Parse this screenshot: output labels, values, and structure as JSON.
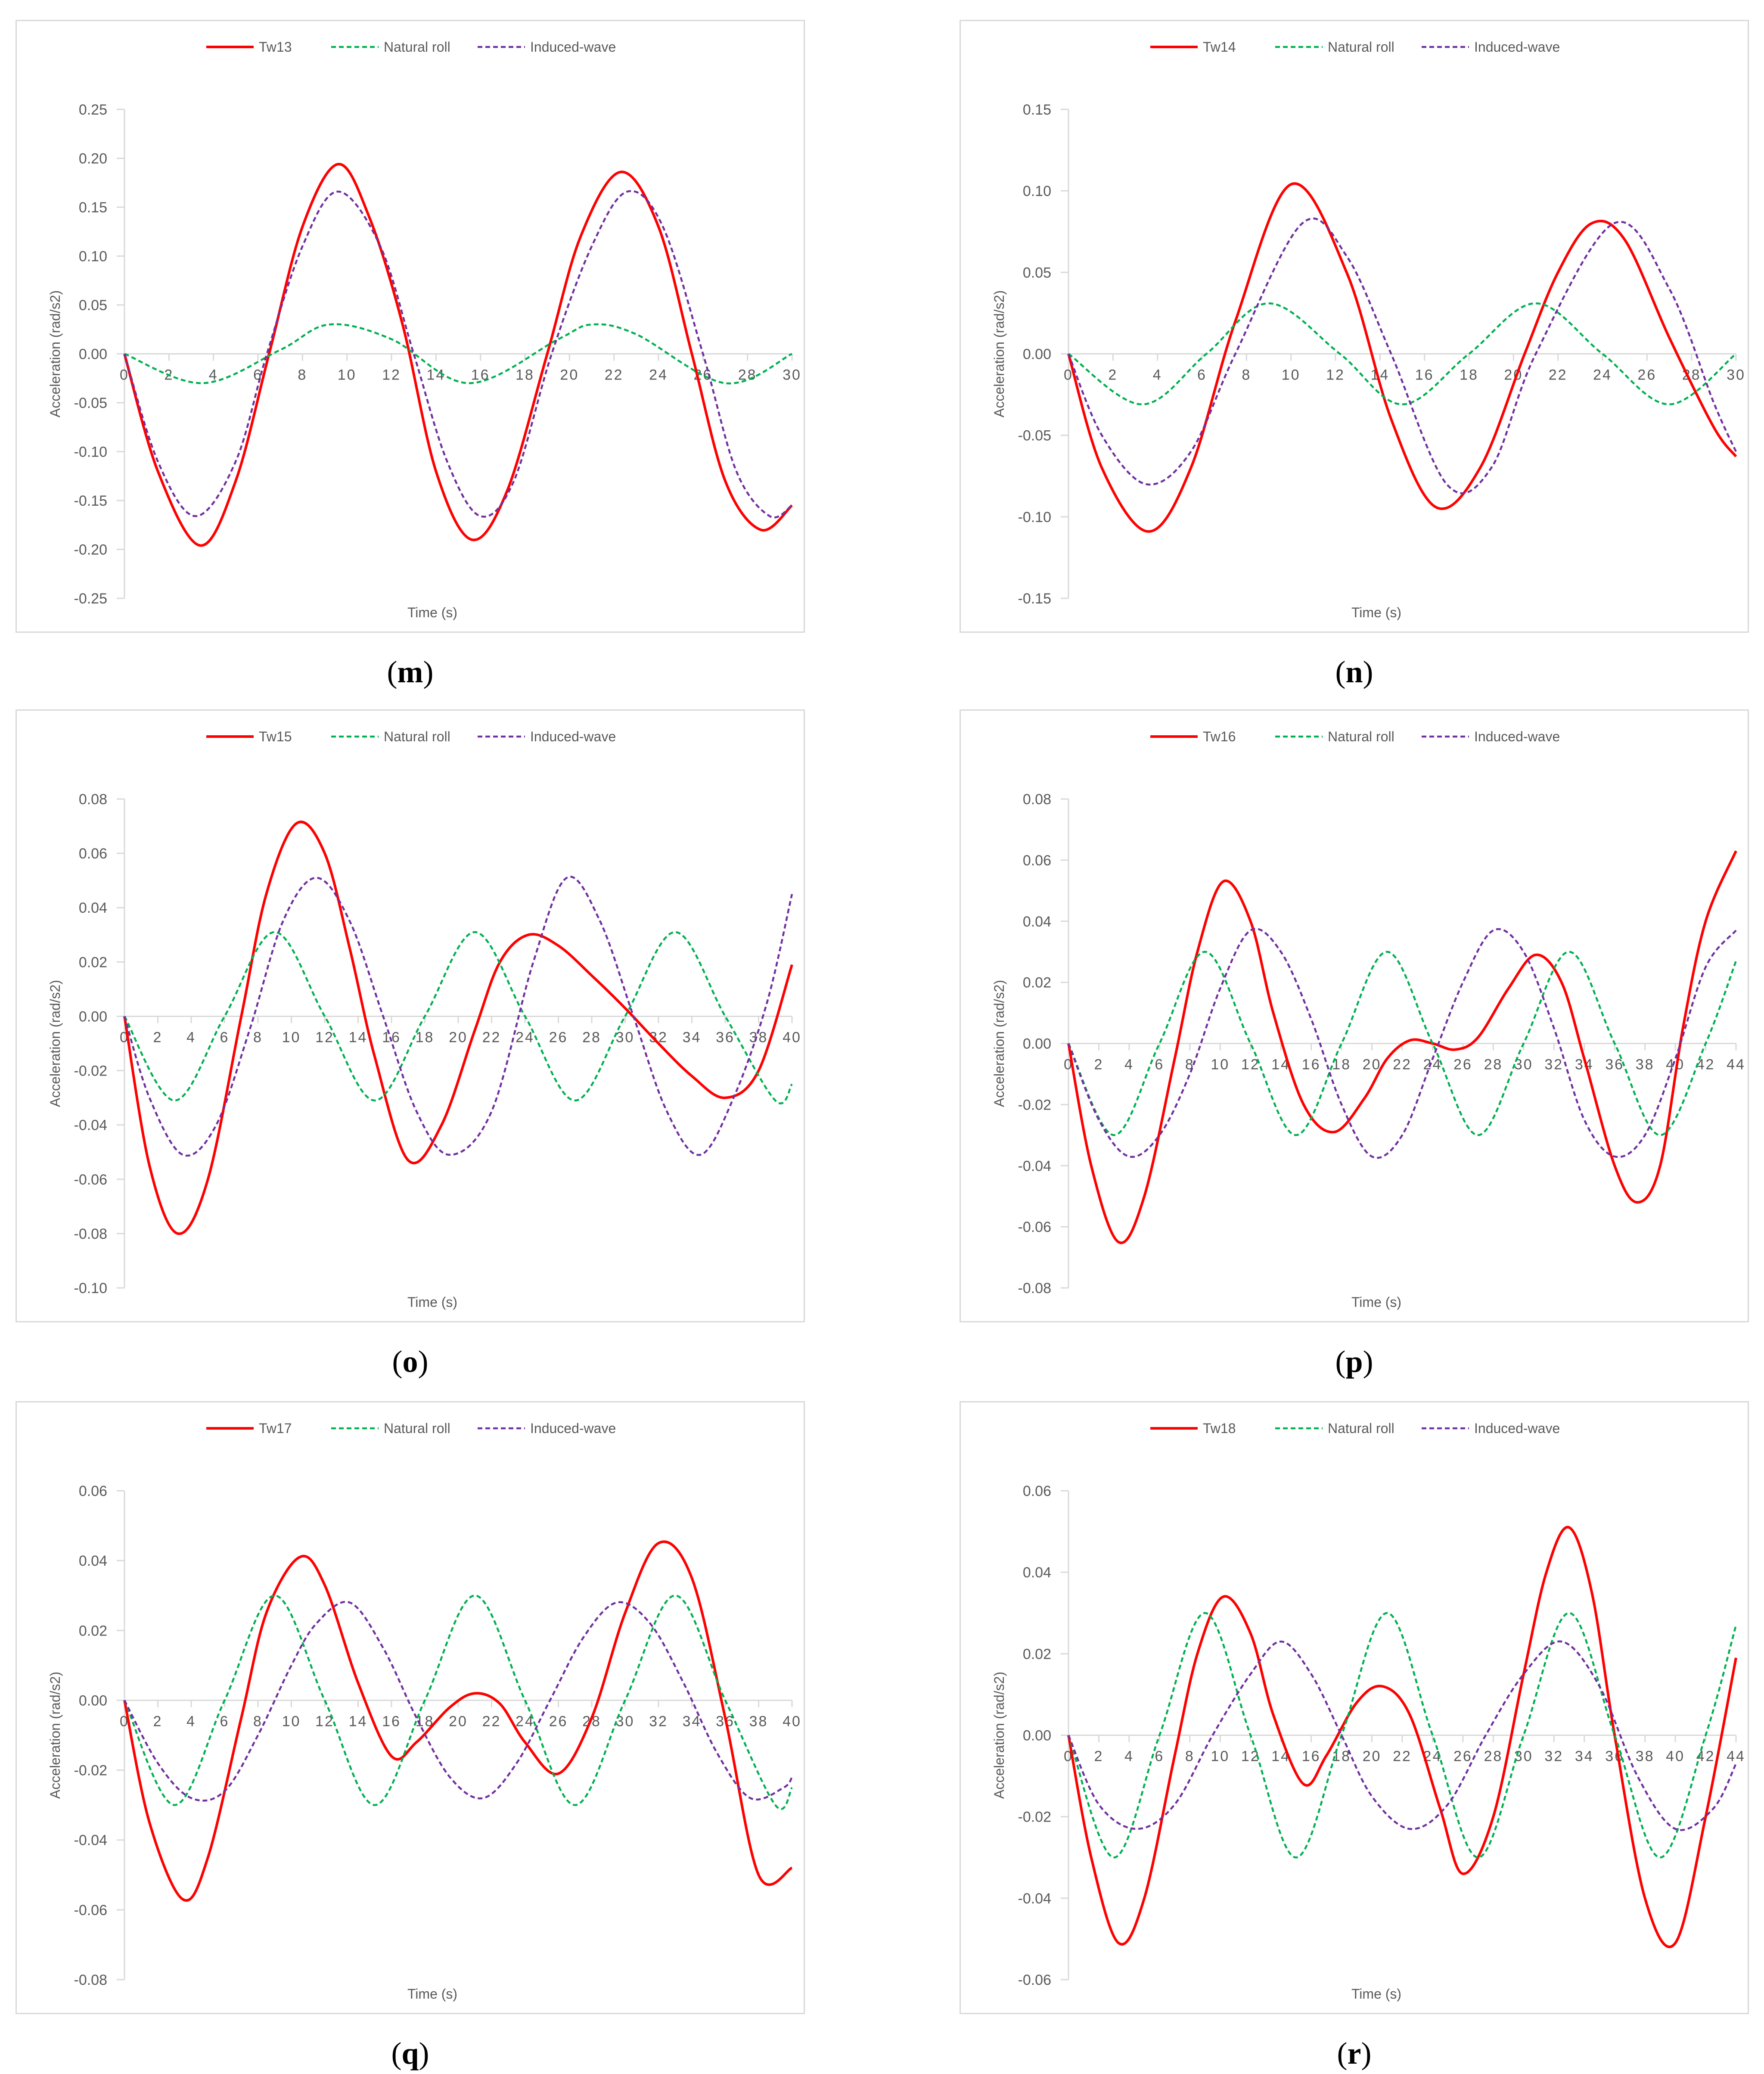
{
  "colors": {
    "tw": "#ff0000",
    "natural": "#00b050",
    "induced": "#7030a0",
    "axis": "#d9d9d9",
    "text": "#595959"
  },
  "legend_labels": {
    "natural": "Natural roll",
    "induced": "Induced-wave"
  },
  "chart_data": [
    {
      "caption": "m",
      "type": "line",
      "legend": "top",
      "ylabel": "Acceleration (rad/s2)",
      "xlabel": "Time (s)",
      "ylim": [
        -0.25,
        0.25
      ],
      "ystep": 0.05,
      "ydecimals": 2,
      "xticks": [
        0,
        2,
        4,
        6,
        8,
        10,
        12,
        14,
        16,
        18,
        20,
        22,
        24,
        26,
        28,
        30
      ],
      "series": [
        {
          "name": "Tw13",
          "key": "tw",
          "style": "solid",
          "x": [
            0,
            1.5,
            3.4,
            5,
            6.5,
            8,
            9.6,
            11,
            12.5,
            14,
            15.6,
            17.2,
            19,
            20.5,
            22.3,
            24,
            25.5,
            27,
            28.6,
            30
          ],
          "y": [
            0,
            -0.12,
            -0.196,
            -0.13,
            0,
            0.13,
            0.194,
            0.14,
            0.03,
            -0.12,
            -0.19,
            -0.14,
            0,
            0.12,
            0.186,
            0.13,
            0,
            -0.13,
            -0.18,
            -0.155
          ]
        },
        {
          "name": "Natural roll",
          "key": "natural",
          "style": "dashed",
          "x": [
            0,
            3.5,
            7,
            9.2,
            12,
            15.5,
            19.5,
            21,
            23,
            27,
            30
          ],
          "y": [
            0,
            -0.03,
            0.004,
            0.03,
            0.015,
            -0.03,
            0.015,
            0.03,
            0.02,
            -0.03,
            0
          ]
        },
        {
          "name": "Induced-wave",
          "key": "induced",
          "style": "dashed",
          "x": [
            0,
            1.5,
            3.2,
            5,
            6.4,
            8,
            9.6,
            11.5,
            13,
            14.5,
            16,
            17.5,
            19.2,
            21,
            22.6,
            24.2,
            26,
            27.5,
            29,
            30
          ],
          "y": [
            0,
            -0.11,
            -0.166,
            -0.11,
            0,
            0.11,
            0.166,
            0.11,
            0,
            -0.11,
            -0.166,
            -0.13,
            0,
            0.11,
            0.166,
            0.13,
            0,
            -0.12,
            -0.166,
            -0.155
          ]
        }
      ]
    },
    {
      "caption": "n",
      "type": "line",
      "legend": "top",
      "ylabel": "Acceleration (rad/s2)",
      "xlabel": "Time (s)",
      "ylim": [
        -0.15,
        0.15
      ],
      "ystep": 0.05,
      "ydecimals": 2,
      "xticks": [
        0,
        2,
        4,
        6,
        8,
        10,
        12,
        14,
        16,
        18,
        20,
        22,
        24,
        26,
        28,
        30
      ],
      "series": [
        {
          "name": "Tw14",
          "key": "tw",
          "style": "solid",
          "x": [
            0,
            1.5,
            3.6,
            5.5,
            7.5,
            10,
            12.5,
            14.5,
            16.5,
            18.5,
            20.5,
            22,
            23.5,
            25,
            27,
            29,
            30
          ],
          "y": [
            0,
            -0.07,
            -0.109,
            -0.07,
            0.02,
            0.104,
            0.05,
            -0.04,
            -0.094,
            -0.07,
            0,
            0.05,
            0.08,
            0.07,
            0.01,
            -0.045,
            -0.063
          ]
        },
        {
          "name": "Natural roll",
          "key": "natural",
          "style": "dashed",
          "x": [
            0,
            3.3,
            6.2,
            9,
            12.2,
            15,
            18,
            21,
            24,
            27,
            30
          ],
          "y": [
            0,
            -0.031,
            0,
            0.031,
            0,
            -0.031,
            0,
            0.031,
            0,
            -0.031,
            0
          ]
        },
        {
          "name": "Induced-wave",
          "key": "induced",
          "style": "dashed",
          "x": [
            0,
            1.5,
            3.5,
            5.5,
            7.5,
            10.5,
            12.5,
            14.5,
            17,
            19,
            21,
            24.5,
            27,
            29,
            30
          ],
          "y": [
            0,
            -0.05,
            -0.08,
            -0.06,
            0,
            0.08,
            0.06,
            0,
            -0.08,
            -0.07,
            0,
            0.08,
            0.04,
            -0.03,
            -0.06
          ]
        }
      ]
    },
    {
      "caption": "o",
      "type": "line",
      "legend": "top",
      "ylabel": "Acceleration (rad/s2)",
      "xlabel": "Time (s)",
      "ylim": [
        -0.1,
        0.08
      ],
      "ystep": 0.02,
      "ydecimals": 2,
      "xticks": [
        0,
        2,
        4,
        6,
        8,
        10,
        12,
        14,
        16,
        18,
        20,
        22,
        24,
        26,
        28,
        30,
        32,
        34,
        36,
        38,
        40
      ],
      "series": [
        {
          "name": "Tw15",
          "key": "tw",
          "style": "solid",
          "x": [
            0,
            1.5,
            3.2,
            5,
            7,
            8.5,
            10.3,
            12,
            13.5,
            15,
            17,
            19,
            21,
            22.5,
            24.2,
            26,
            28,
            30,
            32,
            34,
            36,
            38,
            40
          ],
          "y": [
            0,
            -0.055,
            -0.08,
            -0.06,
            0,
            0.045,
            0.071,
            0.06,
            0.025,
            -0.015,
            -0.053,
            -0.04,
            -0.005,
            0.02,
            0.03,
            0.026,
            0.015,
            0.003,
            -0.01,
            -0.022,
            -0.03,
            -0.02,
            0.019
          ]
        },
        {
          "name": "Natural roll",
          "key": "natural",
          "style": "dashed",
          "x": [
            0,
            3,
            6,
            9,
            12,
            15,
            18,
            21,
            24,
            27,
            30,
            33,
            36,
            39,
            40
          ],
          "y": [
            0,
            -0.031,
            0,
            0.031,
            0,
            -0.031,
            0,
            0.031,
            0,
            -0.031,
            0,
            0.031,
            0,
            -0.031,
            -0.025
          ]
        },
        {
          "name": "Induced-wave",
          "key": "induced",
          "style": "dashed",
          "x": [
            0,
            1.5,
            3.5,
            5.5,
            7.5,
            9.5,
            11.5,
            13.5,
            15.5,
            17.5,
            19.5,
            22,
            24.5,
            26.5,
            28.5,
            30.5,
            32.5,
            34.5,
            36.5,
            38.5,
            40
          ],
          "y": [
            0,
            -0.03,
            -0.051,
            -0.04,
            -0.005,
            0.035,
            0.051,
            0.035,
            0,
            -0.035,
            -0.051,
            -0.035,
            0.02,
            0.051,
            0.035,
            0,
            -0.035,
            -0.051,
            -0.03,
            0.005,
            0.045
          ]
        }
      ]
    },
    {
      "caption": "p",
      "type": "line",
      "legend": "top",
      "ylabel": "Acceleration (rad/s2)",
      "xlabel": "Time (s)",
      "ylim": [
        -0.08,
        0.08
      ],
      "ystep": 0.02,
      "ydecimals": 2,
      "xticks": [
        0,
        2,
        4,
        6,
        8,
        10,
        12,
        14,
        16,
        18,
        20,
        22,
        24,
        26,
        28,
        30,
        32,
        34,
        36,
        38,
        40,
        42,
        44
      ],
      "series": [
        {
          "name": "Tw16",
          "key": "tw",
          "style": "solid",
          "x": [
            0,
            1.5,
            3.3,
            5,
            7,
            8.5,
            10.2,
            12,
            13.5,
            15.5,
            17.5,
            19.5,
            21,
            22.5,
            24,
            25.5,
            27,
            29,
            30.8,
            32.5,
            34,
            36,
            37.5,
            39,
            40.5,
            42,
            44
          ],
          "y": [
            0,
            -0.04,
            -0.065,
            -0.05,
            -0.005,
            0.03,
            0.053,
            0.04,
            0.01,
            -0.02,
            -0.029,
            -0.018,
            -0.005,
            0.001,
            0,
            -0.002,
            0.002,
            0.018,
            0.029,
            0.02,
            -0.005,
            -0.04,
            -0.052,
            -0.04,
            0.005,
            0.04,
            0.063
          ]
        },
        {
          "name": "Natural roll",
          "key": "natural",
          "style": "dashed",
          "x": [
            0,
            3,
            6,
            9,
            12,
            15,
            18,
            21,
            24,
            27,
            30,
            33,
            36,
            39,
            42,
            44
          ],
          "y": [
            0,
            -0.03,
            0,
            0.03,
            0,
            -0.03,
            0,
            0.03,
            0,
            -0.03,
            0,
            0.03,
            0,
            -0.03,
            0,
            0.027
          ]
        },
        {
          "name": "Induced-wave",
          "key": "induced",
          "style": "dashed",
          "x": [
            0,
            2,
            4,
            6,
            8,
            10,
            12,
            14,
            16,
            18,
            20,
            22,
            24,
            26,
            28,
            30,
            32,
            34,
            36,
            38,
            40,
            42,
            44
          ],
          "y": [
            0,
            -0.025,
            -0.037,
            -0.03,
            -0.01,
            0.018,
            0.037,
            0.03,
            0.008,
            -0.02,
            -0.037,
            -0.03,
            -0.005,
            0.02,
            0.037,
            0.03,
            0.005,
            -0.025,
            -0.037,
            -0.03,
            -0.005,
            0.025,
            0.037
          ]
        }
      ]
    },
    {
      "caption": "q",
      "type": "line",
      "legend": "top",
      "ylabel": "Acceleration (rad/s2)",
      "xlabel": "Time (s)",
      "ylim": [
        -0.08,
        0.06
      ],
      "ystep": 0.02,
      "ydecimals": 2,
      "xticks": [
        0,
        2,
        4,
        6,
        8,
        10,
        12,
        14,
        16,
        18,
        20,
        22,
        24,
        26,
        28,
        30,
        32,
        34,
        36,
        38,
        40
      ],
      "series": [
        {
          "name": "Tw17",
          "key": "tw",
          "style": "solid",
          "x": [
            0,
            1.5,
            3.5,
            5,
            7,
            8.5,
            10.5,
            12,
            14,
            16,
            17.5,
            19.5,
            21,
            22.5,
            24,
            26,
            28,
            30,
            32,
            34,
            36,
            38,
            40
          ],
          "y": [
            0,
            -0.035,
            -0.057,
            -0.045,
            -0.005,
            0.025,
            0.041,
            0.033,
            0.005,
            -0.016,
            -0.012,
            -0.002,
            0.002,
            -0.001,
            -0.012,
            -0.021,
            -0.005,
            0.025,
            0.045,
            0.035,
            -0.005,
            -0.05,
            -0.048
          ]
        },
        {
          "name": "Natural roll",
          "key": "natural",
          "style": "dashed",
          "x": [
            0,
            3,
            6,
            9,
            12,
            15,
            18,
            21,
            24,
            27,
            30,
            33,
            36,
            39,
            40
          ],
          "y": [
            0,
            -0.03,
            0,
            0.03,
            0,
            -0.03,
            0,
            0.03,
            0,
            -0.03,
            0,
            0.03,
            0,
            -0.03,
            -0.025
          ]
        },
        {
          "name": "Induced-wave",
          "key": "induced",
          "style": "dashed",
          "x": [
            0,
            2,
            4,
            6,
            8,
            10,
            11.5,
            13.5,
            15.5,
            17.5,
            19.5,
            21.5,
            23.5,
            25.5,
            27.5,
            29.5,
            31.5,
            33.5,
            35.5,
            37.5,
            39.5,
            40
          ],
          "y": [
            0,
            -0.018,
            -0.028,
            -0.026,
            -0.01,
            0.01,
            0.022,
            0.028,
            0.015,
            -0.005,
            -0.022,
            -0.028,
            -0.018,
            0,
            0.018,
            0.028,
            0.022,
            0.005,
            -0.015,
            -0.028,
            -0.025,
            -0.022
          ]
        }
      ]
    },
    {
      "caption": "r",
      "type": "line",
      "legend": "top",
      "ylabel": "Acceleration (rad/s2)",
      "xlabel": "Time (s)",
      "ylim": [
        -0.06,
        0.06
      ],
      "ystep": 0.02,
      "ydecimals": 2,
      "xticks": [
        0,
        2,
        4,
        6,
        8,
        10,
        12,
        14,
        16,
        18,
        20,
        22,
        24,
        26,
        28,
        30,
        32,
        34,
        36,
        38,
        40,
        42,
        44
      ],
      "series": [
        {
          "name": "Tw18",
          "key": "tw",
          "style": "solid",
          "x": [
            0,
            1.5,
            3.3,
            5,
            7,
            8.5,
            10.2,
            12,
            13.5,
            15.5,
            17,
            19,
            20.7,
            22.5,
            24.5,
            26,
            28,
            30,
            31.5,
            33,
            34.5,
            36,
            38,
            40,
            42,
            44
          ],
          "y": [
            0,
            -0.03,
            -0.051,
            -0.04,
            -0.005,
            0.02,
            0.034,
            0.025,
            0.005,
            -0.012,
            -0.005,
            0.008,
            0.012,
            0.005,
            -0.018,
            -0.034,
            -0.02,
            0.015,
            0.04,
            0.051,
            0.035,
            0,
            -0.04,
            -0.051,
            -0.02,
            0.019
          ]
        },
        {
          "name": "Natural roll",
          "key": "natural",
          "style": "dashed",
          "x": [
            0,
            3,
            6,
            9,
            12,
            15,
            18,
            21,
            24,
            27,
            30,
            33,
            36,
            39,
            42,
            44
          ],
          "y": [
            0,
            -0.03,
            0,
            0.03,
            0,
            -0.03,
            0,
            0.03,
            0,
            -0.03,
            0,
            0.03,
            0,
            -0.03,
            0,
            0.027
          ]
        },
        {
          "name": "Induced-wave",
          "key": "induced",
          "style": "dashed",
          "x": [
            0,
            2,
            4.5,
            7,
            9.5,
            12,
            14,
            16,
            18,
            20,
            22.5,
            25,
            27.5,
            30,
            32.5,
            35,
            37.5,
            40,
            42.5,
            44
          ],
          "y": [
            0,
            -0.017,
            -0.023,
            -0.017,
            0,
            0.015,
            0.023,
            0.015,
            0,
            -0.015,
            -0.023,
            -0.017,
            0,
            0.015,
            0.023,
            0.012,
            -0.01,
            -0.023,
            -0.018,
            -0.007
          ]
        }
      ]
    }
  ]
}
